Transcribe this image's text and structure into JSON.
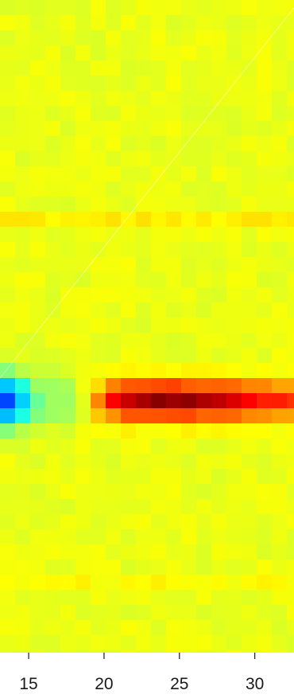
{
  "chart_data": {
    "type": "heatmap",
    "title": "",
    "xlabel": "",
    "ylabel": "",
    "x_tick_labels": [
      "15",
      "20",
      "25",
      "30"
    ],
    "x_ticks": [
      15,
      20,
      25,
      30
    ],
    "xlim": [
      13.1,
      32.6
    ],
    "grid": false,
    "legend": "none",
    "colormap": "jet",
    "diagonal_line": true,
    "features": [
      {
        "kind": "cool_peak",
        "description_value": "minimum",
        "x_center": 13.2,
        "rows_span": "band",
        "value": -0.85
      },
      {
        "kind": "hot_band",
        "x_from": 19.5,
        "x_to": 32.6,
        "peak_x": 24.5,
        "value": 0.75
      }
    ],
    "colors": {
      "background_mid": "#a8f000",
      "low": "#0000ff",
      "high": "#ff5a00"
    }
  }
}
